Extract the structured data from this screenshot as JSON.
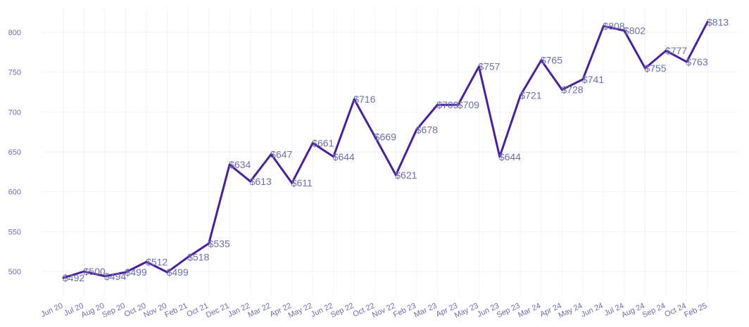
{
  "chart_data": {
    "type": "line",
    "title": "",
    "xlabel": "",
    "ylabel": "",
    "ylim": [
      475,
      830
    ],
    "yticks": [
      500,
      550,
      600,
      650,
      700,
      750,
      800
    ],
    "grid": true,
    "line_color": "#4a1fa0",
    "text_color": "#6d6fa6",
    "categories": [
      "Jun 20",
      "Jul 20",
      "Aug 20",
      "Sep 20",
      "Oct 20",
      "Nov 20",
      "Feb 21",
      "Oct 21",
      "Dec 21",
      "Jan 22",
      "Mar 22",
      "Apr 22",
      "May 22",
      "Jun 22",
      "Sep 22",
      "Oct 22",
      "Nov 22",
      "Feb 23",
      "Mar 23",
      "Apr 23",
      "May 23",
      "Jun 23",
      "Sep 23",
      "Mar 24",
      "Apr 24",
      "May 24",
      "Jun 24",
      "Jul 24",
      "Aug 24",
      "Sep 24",
      "Oct 24",
      "Feb 25"
    ],
    "series": [
      {
        "values": [
          492,
          500,
          494,
          499,
          512,
          499,
          518,
          535,
          634,
          613,
          647,
          611,
          661,
          644,
          716,
          669,
          621,
          678,
          709,
          709,
          757,
          644,
          721,
          765,
          728,
          741,
          808,
          802,
          755,
          777,
          763,
          813
        ],
        "labels": [
          "$492",
          "$500",
          "$494",
          "$499",
          "$512",
          "$499",
          "$518",
          "$535",
          "$634",
          "$613",
          "$647",
          "$611",
          "$661",
          "$644",
          "$716",
          "$669",
          "$621",
          "$678",
          "$709",
          "$709",
          "$757",
          "$644",
          "$721",
          "$765",
          "$728",
          "$741",
          "$808",
          "$802",
          "$755",
          "$777",
          "$763",
          "$813"
        ]
      }
    ]
  }
}
